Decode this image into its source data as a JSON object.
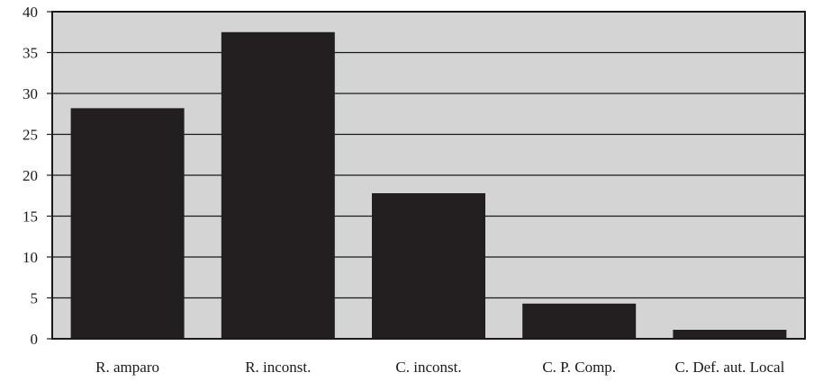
{
  "chart_data": {
    "type": "bar",
    "title": "",
    "xlabel": "",
    "ylabel": "",
    "categories": [
      "R. amparo",
      "R. inconst.",
      "C. inconst.",
      "C. P. Comp.",
      "C. Def. aut. Local"
    ],
    "values": [
      28.2,
      37.5,
      17.8,
      4.3,
      1.1
    ],
    "ylim": [
      0,
      40
    ],
    "yticks": [
      "0",
      "5",
      "10",
      "15",
      "20",
      "25",
      "30",
      "35",
      "40"
    ],
    "grid": "horizontal",
    "legend": "none",
    "colors": {
      "plot_background": "#d4d4d4",
      "bar": "#231f20",
      "gridline": "#1a1a1a",
      "frame": "#1a1a1a"
    }
  }
}
